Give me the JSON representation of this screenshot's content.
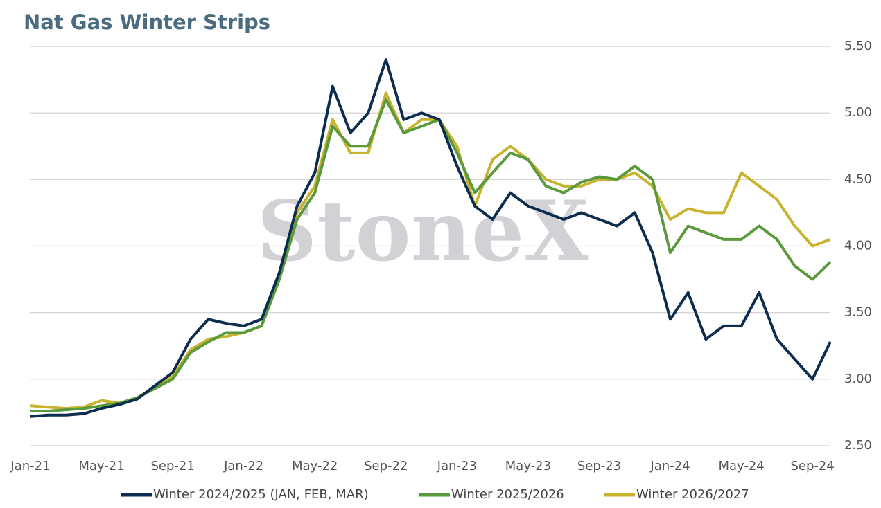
{
  "chart_data": {
    "type": "line",
    "title": "Nat Gas Winter Strips",
    "watermark": "StoneX",
    "categories": [
      "Jan-21",
      null,
      null,
      null,
      "May-21",
      null,
      null,
      null,
      "Sep-21",
      null,
      null,
      null,
      "Jan-22",
      null,
      null,
      null,
      "May-22",
      null,
      null,
      null,
      "Sep-22",
      null,
      null,
      null,
      "Jan-23",
      null,
      null,
      null,
      "May-23",
      null,
      null,
      null,
      "Sep-23",
      null,
      null,
      null,
      "Jan-24",
      null,
      null,
      null,
      "May-24",
      null,
      null,
      null,
      "Sep-24",
      null
    ],
    "series": [
      {
        "name": "Winter 2024/2025 (JAN, FEB, MAR)",
        "color": "#0d2d4f",
        "values": [
          2.72,
          2.73,
          2.73,
          2.74,
          2.78,
          2.81,
          2.85,
          2.95,
          3.05,
          3.3,
          3.45,
          3.42,
          3.4,
          3.45,
          3.8,
          4.3,
          4.55,
          5.2,
          4.85,
          5.0,
          5.4,
          4.95,
          5.0,
          4.95,
          4.6,
          4.3,
          4.2,
          4.4,
          4.3,
          4.25,
          4.2,
          4.25,
          4.2,
          4.15,
          4.25,
          3.95,
          3.45,
          3.65,
          3.3,
          3.4,
          3.4,
          3.65,
          3.3,
          3.15,
          3.0,
          3.28
        ]
      },
      {
        "name": "Winter 2025/2026",
        "color": "#5a9a3c",
        "values": [
          2.76,
          2.76,
          2.77,
          2.78,
          2.8,
          2.82,
          2.86,
          2.93,
          3.0,
          3.2,
          3.28,
          3.35,
          3.35,
          3.4,
          3.75,
          4.2,
          4.4,
          4.9,
          4.75,
          4.75,
          5.1,
          4.85,
          4.9,
          4.95,
          4.7,
          4.4,
          4.55,
          4.7,
          4.65,
          4.45,
          4.4,
          4.48,
          4.52,
          4.5,
          4.6,
          4.5,
          3.95,
          4.15,
          4.1,
          4.05,
          4.05,
          4.15,
          4.05,
          3.85,
          3.75,
          3.88
        ]
      },
      {
        "name": "Winter 2026/2027",
        "color": "#c9b22e",
        "values": [
          2.8,
          2.79,
          2.78,
          2.79,
          2.84,
          2.82,
          2.86,
          2.94,
          3.02,
          3.22,
          3.3,
          3.32,
          3.35,
          3.4,
          3.78,
          4.25,
          4.45,
          4.95,
          4.7,
          4.7,
          5.15,
          4.85,
          4.95,
          4.95,
          4.75,
          4.3,
          4.65,
          4.75,
          4.65,
          4.5,
          4.45,
          4.45,
          4.5,
          4.5,
          4.55,
          4.45,
          4.2,
          4.28,
          4.25,
          4.25,
          4.55,
          4.45,
          4.35,
          4.15,
          4.0,
          4.05
        ]
      }
    ],
    "ylim": [
      2.5,
      5.5
    ],
    "yticks": [
      {
        "value": 2.5,
        "label": "2.50"
      },
      {
        "value": 3.0,
        "label": "3.00"
      },
      {
        "value": 3.5,
        "label": "3.50"
      },
      {
        "value": 4.0,
        "label": "4.00"
      },
      {
        "value": 4.5,
        "label": "4.50"
      },
      {
        "value": 5.0,
        "label": "5.00"
      },
      {
        "value": 5.5,
        "label": "5.50"
      }
    ],
    "grid": true,
    "legend": "bottom"
  }
}
